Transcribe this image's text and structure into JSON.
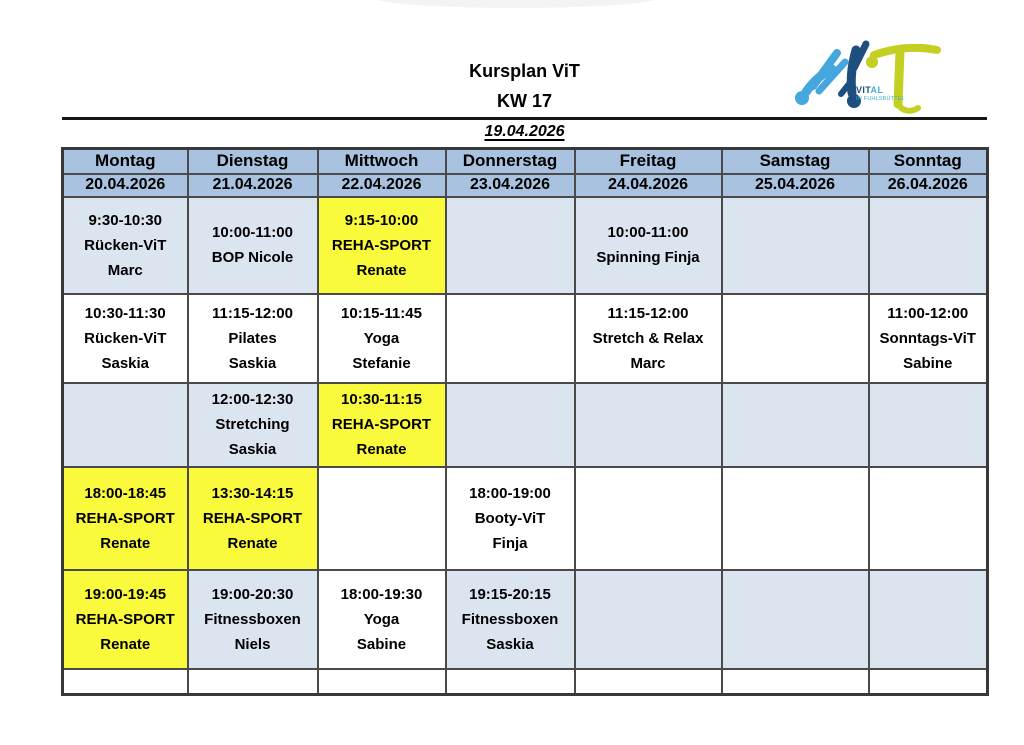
{
  "page": {
    "title": "Kursplan ViT",
    "week": "KW 17",
    "start_date": "19.04.2026"
  },
  "logo": {
    "brand_primary": "VIT",
    "brand_secondary": "AL",
    "subtitle": "IN FUHLSBÜTTEL"
  },
  "colors": {
    "header_bg": "#a9c2df",
    "cell_blue": "#dbe5f0",
    "cell_yellow": "#fafa3c",
    "cell_white": "#ffffff",
    "border": "#4a4a4a",
    "logo_light_blue": "#45a7dd",
    "logo_dark_blue": "#1d4e7e",
    "logo_green": "#c3cf21",
    "logo_teal": "#3fb0cc"
  },
  "schedule": {
    "days": [
      {
        "name": "Montag",
        "date": "20.04.2026"
      },
      {
        "name": "Dienstag",
        "date": "21.04.2026"
      },
      {
        "name": "Mittwoch",
        "date": "22.04.2026"
      },
      {
        "name": "Donnerstag",
        "date": "23.04.2026"
      },
      {
        "name": "Freitag",
        "date": "24.04.2026"
      },
      {
        "name": "Samstag",
        "date": "25.04.2026"
      },
      {
        "name": "Sonntag",
        "date": "26.04.2026"
      }
    ],
    "rows": [
      {
        "cells": [
          {
            "bg": "blue",
            "lines": [
              "9:30-10:30",
              "Rücken-ViT",
              "Marc"
            ]
          },
          {
            "bg": "blue",
            "lines": [
              "10:00-11:00",
              "BOP Nicole"
            ]
          },
          {
            "bg": "yellow",
            "lines": [
              "9:15-10:00",
              "REHA-SPORT",
              "Renate"
            ]
          },
          {
            "bg": "blue",
            "lines": []
          },
          {
            "bg": "blue",
            "lines": [
              "10:00-11:00",
              "Spinning Finja"
            ]
          },
          {
            "bg": "blue",
            "lines": []
          },
          {
            "bg": "blue",
            "lines": []
          }
        ]
      },
      {
        "cells": [
          {
            "bg": "white",
            "lines": [
              "10:30-11:30",
              "Rücken-ViT",
              "Saskia"
            ]
          },
          {
            "bg": "white",
            "lines": [
              "11:15-12:00",
              "Pilates",
              "Saskia"
            ]
          },
          {
            "bg": "white",
            "lines": [
              "10:15-11:45",
              "Yoga",
              "Stefanie"
            ]
          },
          {
            "bg": "white",
            "lines": []
          },
          {
            "bg": "white",
            "lines": [
              "11:15-12:00",
              "Stretch & Relax",
              "Marc"
            ]
          },
          {
            "bg": "white",
            "lines": []
          },
          {
            "bg": "white",
            "lines": [
              "11:00-12:00",
              "Sonntags-ViT",
              "Sabine"
            ]
          }
        ]
      },
      {
        "cells": [
          {
            "bg": "blue",
            "lines": []
          },
          {
            "bg": "blue",
            "lines": [
              "12:00-12:30",
              "Stretching",
              "Saskia"
            ]
          },
          {
            "bg": "yellow",
            "lines": [
              "10:30-11:15",
              "REHA-SPORT",
              "Renate"
            ]
          },
          {
            "bg": "blue",
            "lines": []
          },
          {
            "bg": "blue",
            "lines": []
          },
          {
            "bg": "blue",
            "lines": []
          },
          {
            "bg": "blue",
            "lines": []
          }
        ]
      },
      {
        "cells": [
          {
            "bg": "yellow",
            "lines": [
              "18:00-18:45",
              "REHA-SPORT",
              "Renate"
            ]
          },
          {
            "bg": "yellow",
            "lines": [
              "13:30-14:15",
              "REHA-SPORT",
              "Renate"
            ]
          },
          {
            "bg": "white",
            "lines": []
          },
          {
            "bg": "white",
            "lines": [
              "18:00-19:00",
              "Booty-ViT",
              "Finja"
            ]
          },
          {
            "bg": "white",
            "lines": []
          },
          {
            "bg": "white",
            "lines": []
          },
          {
            "bg": "white",
            "lines": []
          }
        ]
      },
      {
        "cells": [
          {
            "bg": "yellow",
            "lines": [
              "19:00-19:45",
              "REHA-SPORT",
              "Renate"
            ]
          },
          {
            "bg": "blue",
            "lines": [
              "19:00-20:30",
              "Fitnessboxen",
              "Niels"
            ]
          },
          {
            "bg": "white",
            "lines": [
              "18:00-19:30",
              "Yoga",
              "Sabine"
            ]
          },
          {
            "bg": "blue",
            "lines": [
              "19:15-20:15",
              "Fitnessboxen",
              "Saskia"
            ]
          },
          {
            "bg": "blue",
            "lines": []
          },
          {
            "bg": "blue",
            "lines": []
          },
          {
            "bg": "blue",
            "lines": []
          }
        ]
      },
      {
        "cells": [
          {
            "bg": "white",
            "lines": []
          },
          {
            "bg": "white",
            "lines": []
          },
          {
            "bg": "white",
            "lines": []
          },
          {
            "bg": "white",
            "lines": []
          },
          {
            "bg": "white",
            "lines": []
          },
          {
            "bg": "white",
            "lines": []
          },
          {
            "bg": "white",
            "lines": []
          }
        ]
      }
    ]
  }
}
